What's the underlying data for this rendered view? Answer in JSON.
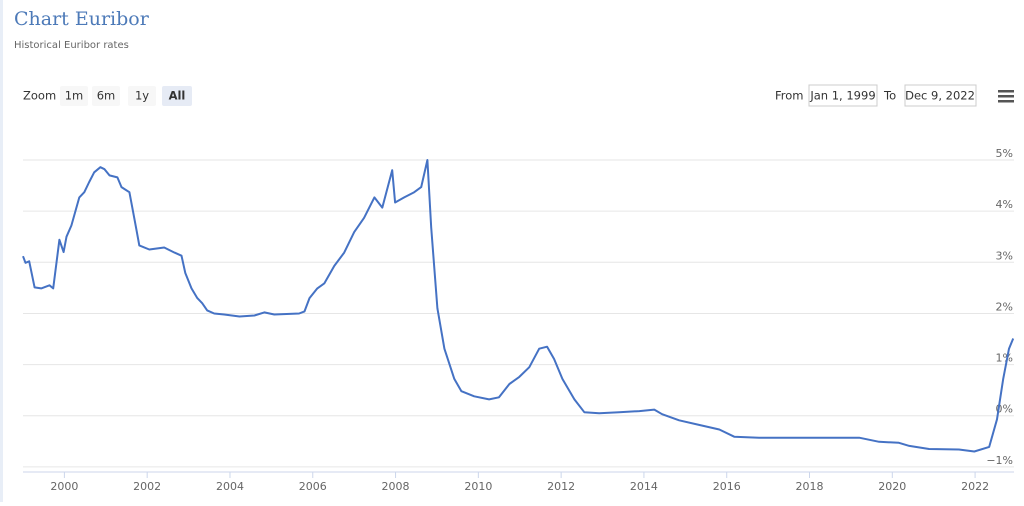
{
  "chart_data": {
    "type": "line",
    "title": "Chart Euribor",
    "subtitle": "Historical Euribor rates",
    "x": [
      1999.0,
      1999.06,
      1999.15,
      1999.28,
      1999.44,
      1999.64,
      1999.73,
      1999.88,
      1999.98,
      2000.05,
      2000.17,
      2000.36,
      2000.48,
      2000.6,
      2000.72,
      2000.87,
      2000.97,
      2001.09,
      2001.28,
      2001.38,
      2001.57,
      2001.64,
      2001.74,
      2001.81,
      2002.05,
      2002.41,
      2002.66,
      2002.83,
      2002.92,
      2003.07,
      2003.21,
      2003.33,
      2003.45,
      2003.62,
      2003.86,
      2004.23,
      2004.59,
      2004.83,
      2005.07,
      2005.67,
      2005.8,
      2005.92,
      2006.11,
      2006.28,
      2006.52,
      2006.76,
      2007.0,
      2007.24,
      2007.49,
      2007.68,
      2007.92,
      2007.99,
      2008.21,
      2008.45,
      2008.62,
      2008.77,
      2008.86,
      2009.01,
      2009.18,
      2009.42,
      2009.59,
      2009.9,
      2010.26,
      2010.5,
      2010.75,
      2010.99,
      2011.23,
      2011.47,
      2011.66,
      2011.83,
      2012.03,
      2012.32,
      2012.56,
      2012.92,
      2013.4,
      2013.89,
      2014.25,
      2014.44,
      2014.85,
      2015.33,
      2015.82,
      2016.18,
      2016.78,
      2017.75,
      2019.2,
      2019.68,
      2020.16,
      2020.41,
      2020.89,
      2021.61,
      2021.98,
      2022.34,
      2022.53,
      2022.68,
      2022.82,
      2022.92
    ],
    "series": [
      {
        "name": "Euribor",
        "color": "#4572c4",
        "values": [
          3.12,
          2.99,
          3.02,
          2.51,
          2.49,
          2.55,
          2.49,
          3.44,
          3.2,
          3.5,
          3.72,
          4.27,
          4.37,
          4.57,
          4.76,
          4.86,
          4.82,
          4.7,
          4.66,
          4.47,
          4.37,
          4.07,
          3.64,
          3.33,
          3.25,
          3.29,
          3.19,
          3.13,
          2.79,
          2.49,
          2.3,
          2.2,
          2.06,
          2.0,
          1.98,
          1.94,
          1.96,
          2.02,
          1.98,
          2.0,
          2.04,
          2.3,
          2.49,
          2.59,
          2.93,
          3.19,
          3.59,
          3.87,
          4.27,
          4.07,
          4.8,
          4.17,
          4.27,
          4.37,
          4.47,
          5.0,
          3.68,
          2.1,
          1.31,
          0.72,
          0.48,
          0.38,
          0.32,
          0.36,
          0.62,
          0.76,
          0.95,
          1.31,
          1.35,
          1.11,
          0.72,
          0.32,
          0.07,
          0.05,
          0.07,
          0.09,
          0.12,
          0.03,
          -0.09,
          -0.18,
          -0.27,
          -0.41,
          -0.43,
          -0.43,
          -0.43,
          -0.51,
          -0.53,
          -0.59,
          -0.65,
          -0.66,
          -0.7,
          -0.61,
          -0.07,
          0.72,
          1.31,
          1.51
        ]
      }
    ],
    "xlim": [
      1999.0,
      2022.94
    ],
    "xticks": [
      2000,
      2002,
      2004,
      2006,
      2008,
      2010,
      2012,
      2014,
      2016,
      2018,
      2020,
      2022
    ],
    "ylim": [
      -1.1,
      5.45
    ],
    "yticks": [
      {
        "value": -1,
        "label": "−1%"
      },
      {
        "value": 0,
        "label": "0%"
      },
      {
        "value": 1,
        "label": "1%"
      },
      {
        "value": 2,
        "label": "2%"
      },
      {
        "value": 3,
        "label": "3%"
      },
      {
        "value": 4,
        "label": "4%"
      },
      {
        "value": 5,
        "label": "5%"
      }
    ],
    "grid": true
  },
  "range_selector": {
    "zoom_label": "Zoom",
    "buttons": [
      "1m",
      "6m",
      "1y",
      "All"
    ],
    "selected_index": 3,
    "from_label": "From",
    "from": "Jan 1, 1999",
    "to_label": "To",
    "to": "Dec 9, 2022"
  }
}
